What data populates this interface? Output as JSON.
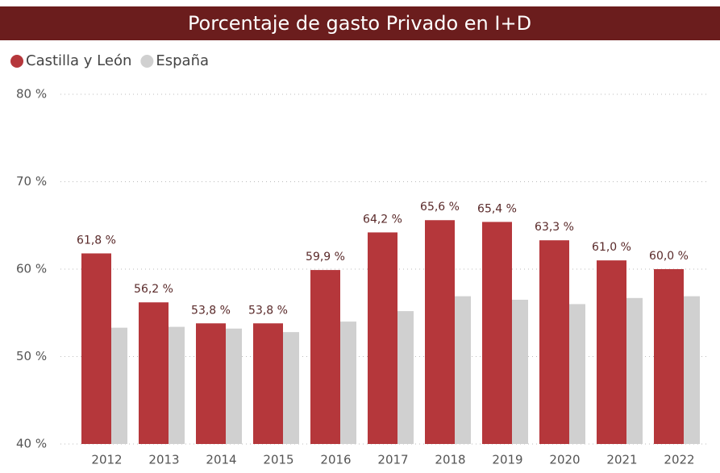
{
  "chart_data": {
    "type": "bar",
    "title": "Porcentaje de gasto Privado en I+D",
    "categories": [
      "2012",
      "2013",
      "2014",
      "2015",
      "2016",
      "2017",
      "2018",
      "2019",
      "2020",
      "2021",
      "2022"
    ],
    "series": [
      {
        "name": "Castilla y León",
        "color": "#b5373b",
        "values": [
          61.8,
          56.2,
          53.8,
          53.8,
          59.9,
          64.2,
          65.6,
          65.4,
          63.3,
          61.0,
          60.0
        ],
        "value_labels": [
          "61,8 %",
          "56,2 %",
          "53,8 %",
          "53,8 %",
          "59,9 %",
          "64,2 %",
          "65,6 %",
          "65,4 %",
          "63,3 %",
          "61,0 %",
          "60,0 %"
        ]
      },
      {
        "name": "España",
        "color": "#d0d0d0",
        "values": [
          53.3,
          53.4,
          53.2,
          52.8,
          54.0,
          55.2,
          56.9,
          56.5,
          56.0,
          56.7,
          56.9
        ]
      }
    ],
    "ylim": [
      40,
      80
    ],
    "yticks": [
      {
        "value": 40,
        "label": "40 %"
      },
      {
        "value": 50,
        "label": "50 %"
      },
      {
        "value": 60,
        "label": "60 %"
      },
      {
        "value": 70,
        "label": "70 %"
      },
      {
        "value": 80,
        "label": "80 %"
      }
    ],
    "grid": true,
    "legend": "top-left"
  }
}
